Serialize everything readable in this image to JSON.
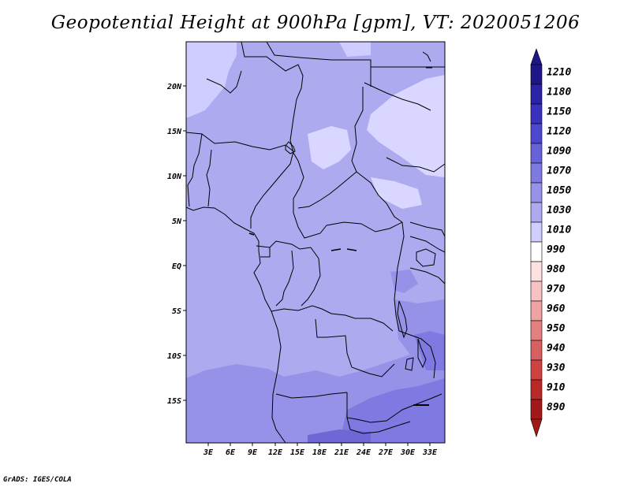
{
  "title": "Geopotential Height at 900hPa [gpm], VT: 2020051206",
  "credit": "GrADS: IGES/COLA",
  "map": {
    "lat_labels": [
      "20N",
      "15N",
      "10N",
      "5N",
      "EQ",
      "5S",
      "10S",
      "15S"
    ],
    "lon_labels": [
      "3E",
      "6E",
      "9E",
      "12E",
      "15E",
      "18E",
      "21E",
      "24E",
      "27E",
      "30E",
      "33E"
    ],
    "extent": {
      "lon_min": 0,
      "lon_max": 35,
      "lat_min": -19.5,
      "lat_max": 24.5
    }
  },
  "colorbar": {
    "labels": [
      "1210",
      "1180",
      "1150",
      "1120",
      "1090",
      "1070",
      "1050",
      "1030",
      "1010",
      "990",
      "980",
      "970",
      "960",
      "950",
      "940",
      "930",
      "910",
      "890"
    ],
    "colors": [
      "#1e1687",
      "#2c22a6",
      "#3b31bf",
      "#4d46cf",
      "#6761da",
      "#7f7ae1",
      "#9592e8",
      "#aeaaf0",
      "#d0ceff",
      "#ffffff",
      "#fde0e0",
      "#f8c2c2",
      "#f0a3a3",
      "#e48080",
      "#d96060",
      "#cf4242",
      "#bb2828",
      "#a31818"
    ]
  }
}
